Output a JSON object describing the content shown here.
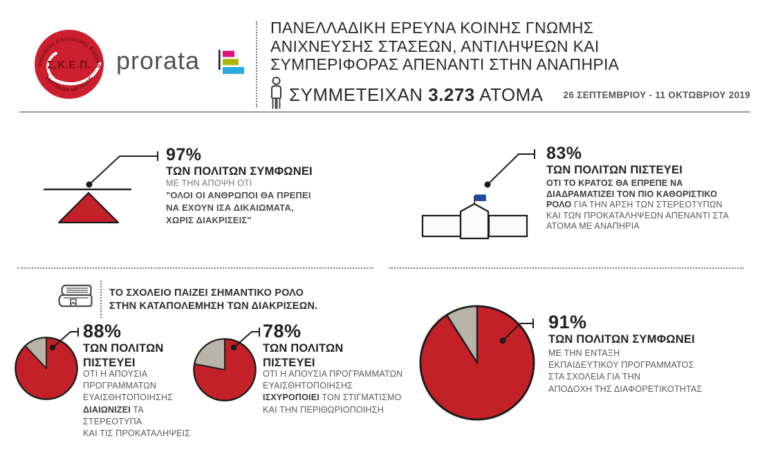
{
  "colors": {
    "red": "#c42027",
    "gray_slice": "#b9b4a8",
    "skep_red": "#ce1f2e",
    "skep_dark": "#7a1115",
    "flag_blue": "#1d4c9f",
    "prorata_pink": "#e0127c",
    "prorata_green": "#adb709",
    "prorata_blue": "#2ba9e1",
    "ink": "#1c1c1c",
    "dotted": "#747577"
  },
  "header": {
    "skep_top": "Σύνδεσμος Κοινωνικής Ευθύνης",
    "skep_center": "Σ.Κ.Ε.Π.",
    "skep_bottom": "για Παιδιά και Νέους",
    "prorata": "prorata",
    "title": "ΠΑΝΕΛΛΑΔΙΚΗ ΕΡΕΥΝΑ ΚΟΙΝΗΣ ΓΝΩΜΗΣ\nΑΝΙΧΝΕΥΣΗΣ ΣΤΑΣΕΩΝ, ΑΝΤΙΛΗΨΕΩΝ ΚΑΙ\nΣΥΜΠΕΡΙΦΟΡΑΣ ΑΠΕΝΑΝΤΙ ΣΤΗΝ ΑΝΑΠΗΡΙΑ",
    "participants": [
      {
        "t": "ΣΥΜΜΕΤΕΙΧΑΝ ",
        "b": false
      },
      {
        "t": "3.273",
        "b": true
      },
      {
        "t": " ΑΤΟΜΑ",
        "b": false
      }
    ],
    "date_range": "26 ΣΕΠΤΕΜΒΡΙΟΥ - 11 ΟΚΤΩΒΡΙΟΥ 2019"
  },
  "stats": {
    "equality": {
      "pct": "97%",
      "headline": "ΤΩΝ ΠΟΛΙΤΩΝ ΣΥΜΦΩΝΕΙ",
      "lead": "ΜΕ ΤΗΝ ΑΠΟΨΗ ΟΤΙ",
      "quote": "\"ΟΛΟΙ ΟΙ ΑΝΘΡΩΠΟΙ ΘΑ ΠΡΕΠΕΙ\nΝΑ ΕΧΟΥΝ ΙΣΑ ΔΙΚΑΙΩΜΑΤΑ,\nΧΩΡΙΣ ΔΙΑΚΡΙΣΕΙΣ\""
    },
    "state": {
      "pct": "83%",
      "headline": "ΤΩΝ ΠΟΛΙΤΩΝ ΠΙΣΤΕΥΕΙ",
      "body": [
        {
          "t": "ΟΤΙ ΤΟ ΚΡΑΤΟΣ ΘΑ ΕΠΡΕΠΕ ΝΑ\nΔΙΑΔΡΑΜΑΤΙΖΕΙ ΤΟΝ ΠΙΟ ΚΑΘΟΡΙΣΤΙΚΟ\nΡΟΛΟ",
          "b": true
        },
        {
          "t": " ΓΙΑ ΤΗΝ ΑΡΣΗ ΤΩΝ ΣΤΕΡΕΟΤΥΠΩΝ\nΚΑΙ ΤΩΝ ΠΡΟΚΑΤΑΛΗΨΕΩΝ ΑΠΕΝΑΝΤΙ ΣΤΑ\nΑΤΟΜΑ ΜΕ ΑΝΑΠΗΡΙΑ",
          "b": false
        }
      ]
    },
    "school_note": "ΤΟ ΣΧΟΛΕΙΟ ΠΑΙΖΕΙ ΣΗΜΑΝΤΙΚΟ ΡΟΛΟ\nΣΤΗΝ ΚΑΤΑΠΟΛΕΜΗΣΗ ΤΩΝ ΔΙΑΚΡΙΣΕΩΝ.",
    "pie88": {
      "pct": "88%",
      "headline": "ΤΩΝ ΠΟΛΙΤΩΝ\nΠΙΣΤΕΥΕΙ",
      "body": [
        {
          "t": "ΟΤΙ Η ΑΠΟΥΣΙΑ\nΠΡΟΓΡΑΜΜΑΤΩΝ\nΕΥΑΙΣΘΗΤΟΠΟΙΗΣΗΣ\n",
          "b": false
        },
        {
          "t": "ΔΙΑΙΩΝΙΖΕΙ",
          "b": true
        },
        {
          "t": " ΤΑ ΣΤΕΡΕΟΤΥΠΑ\nΚΑΙ ΤΙΣ ΠΡΟΚΑΤΑΛΗΨΕΙΣ",
          "b": false
        }
      ]
    },
    "pie78": {
      "pct": "78%",
      "headline": "ΤΩΝ ΠΟΛΙΤΩΝ\nΠΙΣΤΕΥΕΙ",
      "body": [
        {
          "t": "ΟΤΙ Η ΑΠΟΥΣΙΑ ΠΡΟΓΡΑΜΜΑΤΩΝ\nΕΥΑΙΣΘΗΤΟΠΟΙΗΣΗΣ\n",
          "b": false
        },
        {
          "t": "ΙΣΧΥΡΟΠΟΙΕΙ",
          "b": true
        },
        {
          "t": " ΤΟΝ ΣΤΙΓΜΑΤΙΣΜΟ\nΚΑΙ ΤΗΝ ΠΕΡΙΘΩΡΙΟΠΟΙΗΣΗ",
          "b": false
        }
      ]
    },
    "pie91": {
      "pct": "91%",
      "headline": "ΤΩΝ ΠΟΛΙΤΩΝ ΣΥΜΦΩΝΕΙ",
      "body": [
        {
          "t": "ΜΕ ΤΗΝ ΕΝΤΑΞΗ\nΕΚΠΑΙΔΕΥΤΙΚΟΥ ΠΡΟΓΡΑΜΜΑΤΟΣ\nΣΤΑ ΣΧΟΛΕΙΑ ΓΙΑ ΤΗΝ\nΑΠΟΔΟΧΗ ΤΗΣ ΔΙΑΦΟΡΕΤΙΚΟΤΗΤΑΣ",
          "b": false
        }
      ]
    }
  },
  "chart_data": [
    {
      "type": "pie",
      "title": "88% ΤΩΝ ΠΟΛΙΤΩΝ ΠΙΣΤΕΥΕΙ",
      "values": [
        88,
        12
      ],
      "colors": [
        "#c42027",
        "#b9b4a8"
      ],
      "stroke": "#1c1c1c"
    },
    {
      "type": "pie",
      "title": "78% ΤΩΝ ΠΟΛΙΤΩΝ ΠΙΣΤΕΥΕΙ",
      "values": [
        78,
        22
      ],
      "colors": [
        "#c42027",
        "#b9b4a8"
      ],
      "stroke": "#1c1c1c"
    },
    {
      "type": "pie",
      "title": "91% ΤΩΝ ΠΟΛΙΤΩΝ ΣΥΜΦΩΝΕΙ",
      "values": [
        91,
        9
      ],
      "colors": [
        "#c42027",
        "#b9b4a8"
      ],
      "stroke": "#1c1c1c"
    }
  ]
}
